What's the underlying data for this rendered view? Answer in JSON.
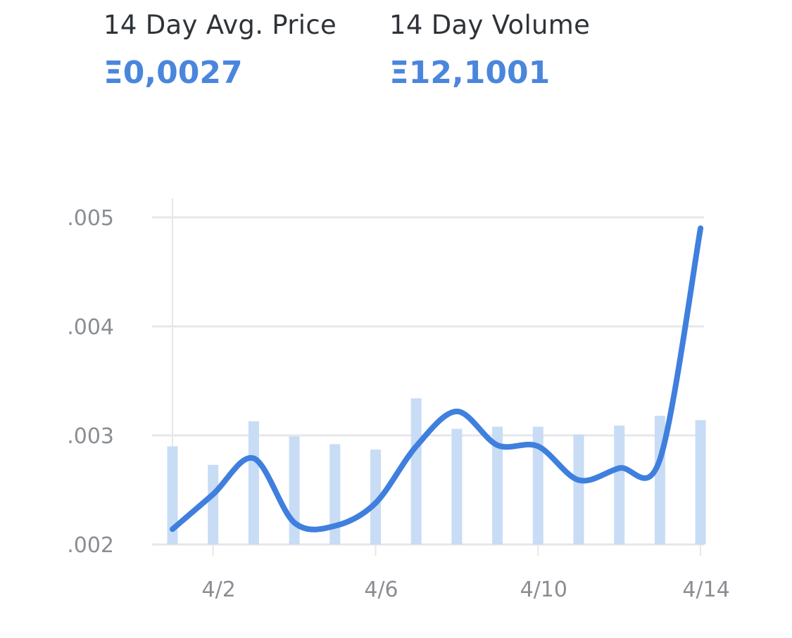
{
  "stats": {
    "avg_price": {
      "label": "14 Day Avg. Price",
      "value": "Ξ0,0027"
    },
    "volume": {
      "label": "14 Day Volume",
      "value": "Ξ12,1001"
    }
  },
  "colors": {
    "accent": "#4a86dc",
    "line": "#3f7fde",
    "bar": "#c8dcf5",
    "grid": "#e6e7ea",
    "tick": "#8a8d93",
    "label": "#2f3338"
  },
  "chart_data": {
    "type": "line",
    "title": "",
    "xlabel": "",
    "ylabel": "",
    "x": [
      "4/1",
      "4/2",
      "4/3",
      "4/4",
      "4/5",
      "4/6",
      "4/7",
      "4/8",
      "4/9",
      "4/10",
      "4/11",
      "4/12",
      "4/13",
      "4/14"
    ],
    "x_tick_labels": [
      "4/2",
      "4/6",
      "4/10",
      "4/14"
    ],
    "y_tick_labels": [
      ".005",
      ".004",
      ".003",
      ".002"
    ],
    "y_ticks": [
      0.005,
      0.004,
      0.003,
      0.002
    ],
    "ylim": [
      0.002,
      0.005
    ],
    "grid": true,
    "series": [
      {
        "type": "line",
        "values": [
          0.00214,
          0.00246,
          0.00279,
          0.0022,
          0.00217,
          0.00238,
          0.0029,
          0.00322,
          0.00291,
          0.0029,
          0.00259,
          0.0027,
          0.00278,
          0.0049
        ]
      },
      {
        "type": "bar",
        "values": [
          0.0029,
          0.00273,
          0.00313,
          0.00299,
          0.00292,
          0.00287,
          0.00334,
          0.00306,
          0.00308,
          0.00308,
          0.00301,
          0.00309,
          0.00318,
          0.00314
        ]
      }
    ]
  }
}
